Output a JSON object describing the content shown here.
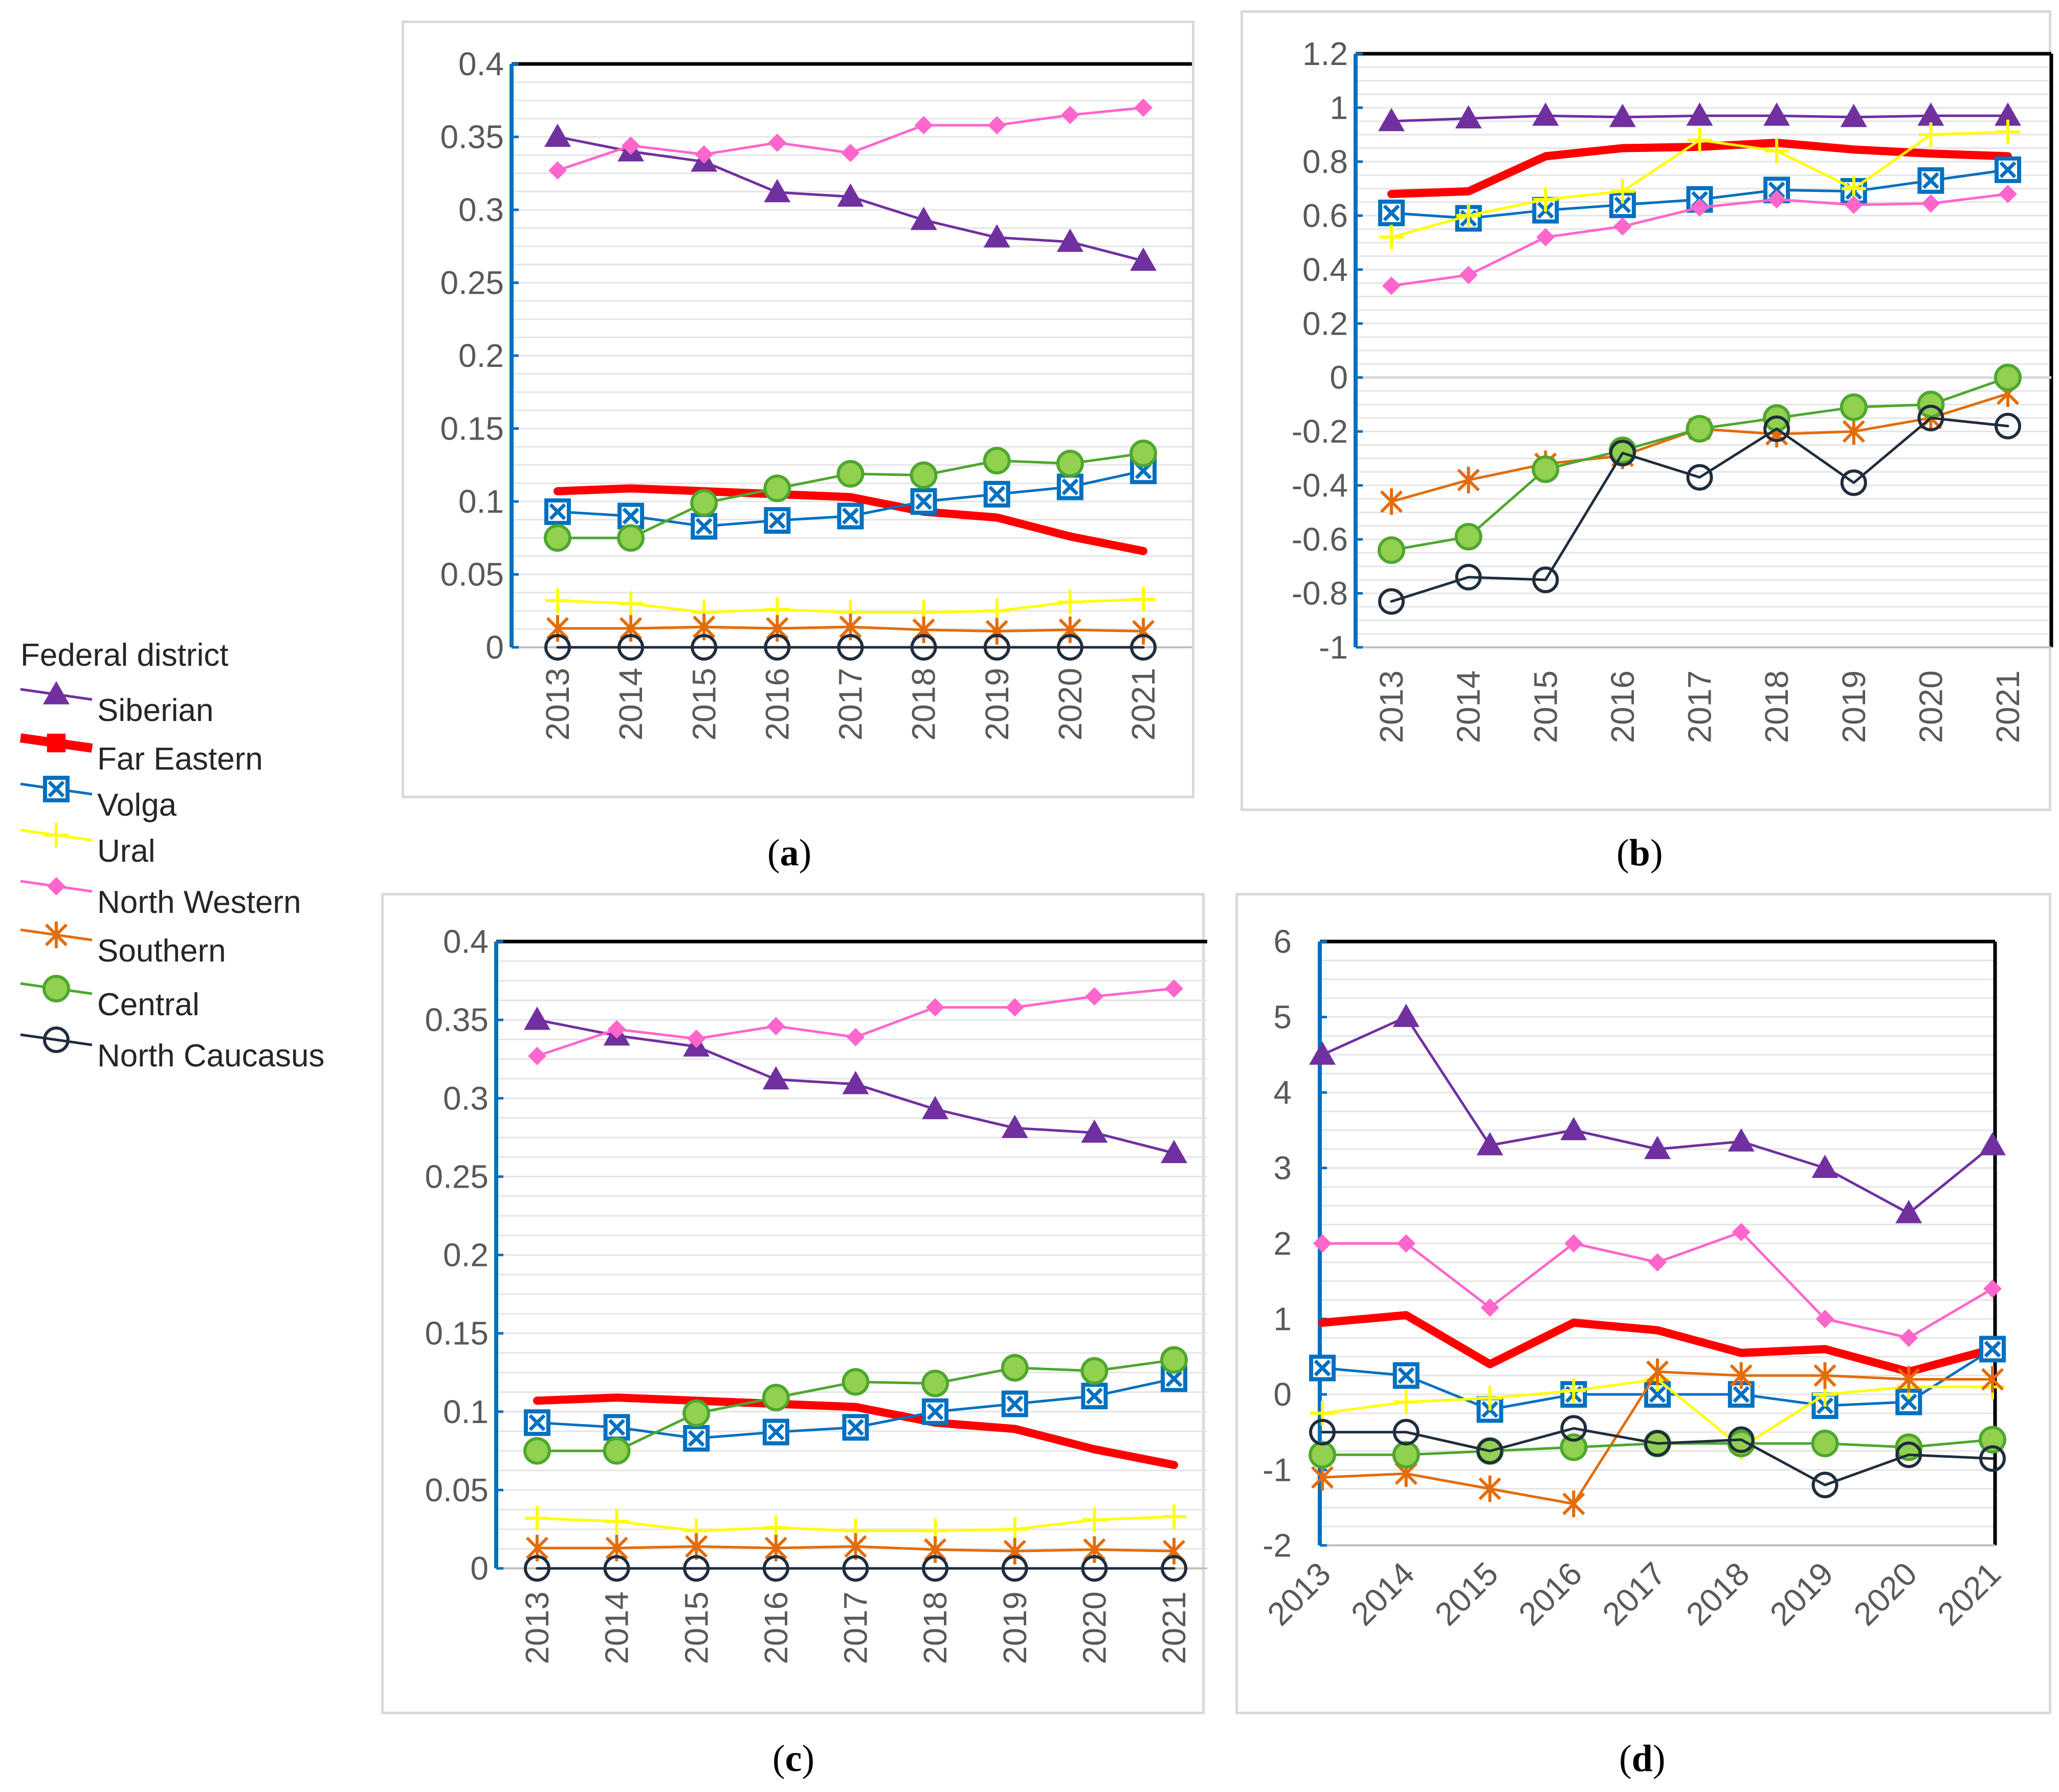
{
  "legend": {
    "title": "Federal district",
    "items": [
      {
        "label": "Siberian",
        "color": "#7030a0",
        "marker": "triangle",
        "thick": false
      },
      {
        "label": "Far Eastern",
        "color": "#ff0000",
        "marker": "square",
        "thick": true
      },
      {
        "label": "Volga",
        "color": "#0070c0",
        "marker": "x",
        "thick": false
      },
      {
        "label": "Ural",
        "color": "#ffff00",
        "marker": "plus",
        "thick": false
      },
      {
        "label": "North Western",
        "color": "#ff66cc",
        "marker": "diamond",
        "thick": false
      },
      {
        "label": "Southern",
        "color": "#e36c09",
        "marker": "star",
        "thick": false
      },
      {
        "label": "Central",
        "color": "#4ea72e",
        "marker": "circle-filled",
        "thick": false
      },
      {
        "label": "North Caucasus",
        "color": "#1f2d3d",
        "marker": "circle-open",
        "thick": false
      }
    ]
  },
  "captions": {
    "a": {
      "open": "(",
      "letter": "a",
      "close": ")"
    },
    "b": {
      "open": "(",
      "letter": "b",
      "close": ")"
    },
    "c": {
      "open": "(",
      "letter": "c",
      "close": ")"
    },
    "d": {
      "open": "(",
      "letter": "d",
      "close": ")"
    }
  },
  "chart_data": [
    {
      "id": "a",
      "type": "line",
      "categories": [
        "2013",
        "2014",
        "2015",
        "2016",
        "2017",
        "2018",
        "2019",
        "2020",
        "2021"
      ],
      "ylim": [
        0,
        0.4
      ],
      "yticks": [
        "0",
        "0.05",
        "0.1",
        "0.15",
        "0.2",
        "0.25",
        "0.3",
        "0.35",
        "0.4"
      ],
      "series": [
        {
          "name": "Siberian",
          "values": [
            0.35,
            0.34,
            0.333,
            0.312,
            0.309,
            0.293,
            0.281,
            0.278,
            0.265
          ]
        },
        {
          "name": "Far Eastern",
          "values": [
            0.107,
            0.109,
            0.107,
            0.105,
            0.103,
            0.093,
            0.089,
            0.076,
            0.066
          ]
        },
        {
          "name": "Volga",
          "values": [
            0.093,
            0.09,
            0.083,
            0.087,
            0.09,
            0.1,
            0.105,
            0.11,
            0.121
          ]
        },
        {
          "name": "Ural",
          "values": [
            0.032,
            0.03,
            0.024,
            0.026,
            0.024,
            0.024,
            0.025,
            0.031,
            0.033
          ]
        },
        {
          "name": "North Western",
          "values": [
            0.327,
            0.344,
            0.338,
            0.346,
            0.339,
            0.358,
            0.358,
            0.365,
            0.37
          ]
        },
        {
          "name": "Southern",
          "values": [
            0.013,
            0.013,
            0.014,
            0.013,
            0.014,
            0.012,
            0.011,
            0.012,
            0.011
          ]
        },
        {
          "name": "Central",
          "values": [
            0.075,
            0.075,
            0.099,
            0.109,
            0.119,
            0.118,
            0.128,
            0.126,
            0.133
          ]
        },
        {
          "name": "North Caucasus",
          "values": [
            0,
            0,
            0,
            0,
            0,
            0,
            0,
            0,
            0
          ]
        }
      ]
    },
    {
      "id": "b",
      "type": "line",
      "categories": [
        "2013",
        "2014",
        "2015",
        "2016",
        "2017",
        "2018",
        "2019",
        "2020",
        "2021"
      ],
      "ylim": [
        -1,
        1.2
      ],
      "yticks": [
        "-1",
        "-0.8",
        "-0.6",
        "-0.4",
        "-0.2",
        "0",
        "0.2",
        "0.4",
        "0.6",
        "0.8",
        "1",
        "1.2"
      ],
      "series": [
        {
          "name": "Siberian",
          "values": [
            0.95,
            0.96,
            0.97,
            0.965,
            0.97,
            0.97,
            0.965,
            0.97,
            0.97
          ]
        },
        {
          "name": "Far Eastern",
          "values": [
            0.68,
            0.69,
            0.82,
            0.85,
            0.855,
            0.87,
            0.845,
            0.83,
            0.82
          ]
        },
        {
          "name": "Volga",
          "values": [
            0.61,
            0.59,
            0.62,
            0.64,
            0.66,
            0.695,
            0.69,
            0.73,
            0.77
          ]
        },
        {
          "name": "Ural",
          "values": [
            0.52,
            0.6,
            0.66,
            0.69,
            0.88,
            0.84,
            0.7,
            0.9,
            0.91
          ]
        },
        {
          "name": "North Western",
          "values": [
            0.34,
            0.38,
            0.52,
            0.56,
            0.63,
            0.66,
            0.64,
            0.645,
            0.68
          ]
        },
        {
          "name": "Southern",
          "values": [
            -0.46,
            -0.38,
            -0.32,
            -0.29,
            -0.19,
            -0.21,
            -0.2,
            -0.15,
            -0.06
          ]
        },
        {
          "name": "Central",
          "values": [
            -0.64,
            -0.59,
            -0.34,
            -0.27,
            -0.19,
            -0.15,
            -0.11,
            -0.1,
            0
          ]
        },
        {
          "name": "North Caucasus",
          "values": [
            -0.83,
            -0.74,
            -0.75,
            -0.28,
            -0.37,
            -0.19,
            -0.39,
            -0.15,
            -0.18
          ]
        }
      ]
    },
    {
      "id": "c",
      "type": "line",
      "categories": [
        "2013",
        "2014",
        "2015",
        "2016",
        "2017",
        "2018",
        "2019",
        "2020",
        "2021"
      ],
      "ylim": [
        0,
        0.4
      ],
      "yticks": [
        "0",
        "0.05",
        "0.1",
        "0.15",
        "0.2",
        "0.25",
        "0.3",
        "0.35",
        "0.4"
      ],
      "series": [
        {
          "name": "Siberian",
          "values": [
            0.35,
            0.34,
            0.333,
            0.312,
            0.309,
            0.293,
            0.281,
            0.278,
            0.265
          ]
        },
        {
          "name": "Far Eastern",
          "values": [
            0.107,
            0.109,
            0.107,
            0.105,
            0.103,
            0.093,
            0.089,
            0.076,
            0.066
          ]
        },
        {
          "name": "Volga",
          "values": [
            0.093,
            0.09,
            0.083,
            0.087,
            0.09,
            0.1,
            0.105,
            0.11,
            0.121
          ]
        },
        {
          "name": "Ural",
          "values": [
            0.032,
            0.03,
            0.024,
            0.026,
            0.024,
            0.024,
            0.025,
            0.031,
            0.033
          ]
        },
        {
          "name": "North Western",
          "values": [
            0.327,
            0.344,
            0.338,
            0.346,
            0.339,
            0.358,
            0.358,
            0.365,
            0.37
          ]
        },
        {
          "name": "Southern",
          "values": [
            0.013,
            0.013,
            0.014,
            0.013,
            0.014,
            0.012,
            0.011,
            0.012,
            0.011
          ]
        },
        {
          "name": "Central",
          "values": [
            0.075,
            0.075,
            0.099,
            0.109,
            0.119,
            0.118,
            0.128,
            0.126,
            0.133
          ]
        },
        {
          "name": "North Caucasus",
          "values": [
            0,
            0,
            0,
            0,
            0,
            0,
            0,
            0,
            0
          ]
        }
      ]
    },
    {
      "id": "d",
      "type": "line",
      "categories": [
        "2013",
        "2014",
        "2015",
        "2016",
        "2017",
        "2018",
        "2019",
        "2020",
        "2021"
      ],
      "ylim": [
        -2,
        6
      ],
      "yticks": [
        "-2",
        "-1",
        "0",
        "1",
        "2",
        "3",
        "4",
        "5",
        "6"
      ],
      "series": [
        {
          "name": "Siberian",
          "values": [
            4.5,
            5.0,
            3.3,
            3.5,
            3.25,
            3.35,
            3.0,
            2.4,
            3.3
          ]
        },
        {
          "name": "Far Eastern",
          "values": [
            0.95,
            1.05,
            0.4,
            0.95,
            0.85,
            0.55,
            0.6,
            0.3,
            0.6
          ]
        },
        {
          "name": "Volga",
          "values": [
            0.35,
            0.25,
            -0.2,
            0,
            0,
            0,
            -0.15,
            -0.1,
            0.6
          ]
        },
        {
          "name": "Ural",
          "values": [
            -0.25,
            -0.1,
            -0.05,
            0.05,
            0.2,
            -0.7,
            0,
            0.1,
            0.1
          ]
        },
        {
          "name": "North Western",
          "values": [
            2.0,
            2.0,
            1.15,
            2.0,
            1.75,
            2.15,
            1.0,
            0.75,
            1.4
          ]
        },
        {
          "name": "Southern",
          "values": [
            -1.1,
            -1.05,
            -1.25,
            -1.45,
            0.3,
            0.25,
            0.25,
            0.2,
            0.2
          ]
        },
        {
          "name": "Central",
          "values": [
            -0.8,
            -0.8,
            -0.75,
            -0.7,
            -0.65,
            -0.65,
            -0.65,
            -0.7,
            -0.6
          ]
        },
        {
          "name": "North Caucasus",
          "values": [
            -0.5,
            -0.5,
            -0.75,
            -0.45,
            -0.65,
            -0.6,
            -1.2,
            -0.8,
            -0.85
          ]
        }
      ]
    }
  ]
}
